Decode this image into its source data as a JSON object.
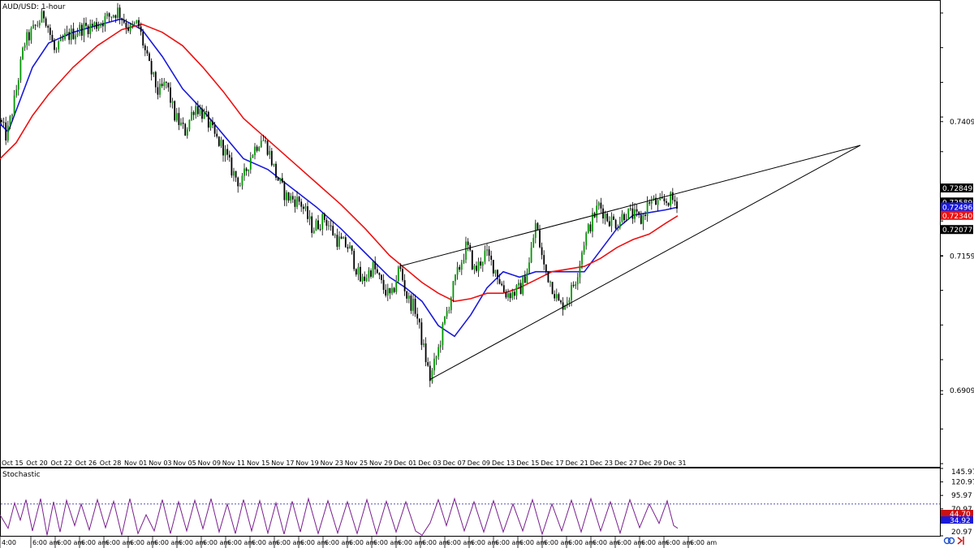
{
  "window": {
    "symbol_title": "AUD/USD: 1-hour",
    "indicator_title": "Stochastic"
  },
  "colors": {
    "background": "#ffffff",
    "bull_candle": "#009900",
    "bear_candle": "#000000",
    "ma_fast": "#1a1adc",
    "ma_slow": "#ee1111",
    "stoch_line": "#7a1f8f",
    "stoch_level_upper": "#3a3ab0",
    "stoch_level_lower": "#c00000",
    "trendline": "#000000"
  },
  "chart_data": [
    {
      "type": "candlestick",
      "title": "AUD/USD: 1-hour",
      "ylim": [
        0.6766,
        0.7635
      ],
      "y_ticks": [
        "0.74090",
        "0.71590",
        "0.69090"
      ],
      "x_ticks": [
        "Oct 15",
        "Oct 20",
        "Oct 22",
        "Oct 26",
        "Oct 28",
        "Nov 01",
        "Nov 03",
        "Nov 05",
        "Nov 09",
        "Nov 11",
        "Nov 15",
        "Nov 17",
        "Nov 19",
        "Nov 23",
        "Nov 25",
        "Nov 29",
        "Dec 01",
        "Dec 03",
        "Dec 07",
        "Dec 09",
        "Dec 13",
        "Dec 15",
        "Dec 17",
        "Dec 21",
        "Dec 23",
        "Dec 27",
        "Dec 29",
        "Dec 31"
      ],
      "x_time_labels": [
        "4:00",
        "6:00 am",
        "6:00 am",
        "6:00 am",
        "6:00 am",
        "6:00 am",
        "6:00 am",
        "6:00 am",
        "6:00 am",
        "6:00 am",
        "6:00 am",
        "6:00 am",
        "6:00 am",
        "6:00 am",
        "6:00 am",
        "6:00 am",
        "6:00 am",
        "6:00 am",
        "6:00 am",
        "6:00 am",
        "6:00 am",
        "6:00 am",
        "6:00 am",
        "6:00 am",
        "6:00 am",
        "6:00 am",
        "6:00 am",
        "6:00 am",
        "6:00 am"
      ],
      "price_path": [
        [
          0,
          0.7412
        ],
        [
          8,
          0.738
        ],
        [
          18,
          0.745
        ],
        [
          30,
          0.7555
        ],
        [
          55,
          0.761
        ],
        [
          68,
          0.7535
        ],
        [
          80,
          0.7565
        ],
        [
          100,
          0.7582
        ],
        [
          120,
          0.759
        ],
        [
          145,
          0.7615
        ],
        [
          160,
          0.758
        ],
        [
          170,
          0.7592
        ],
        [
          182,
          0.752
        ],
        [
          195,
          0.7462
        ],
        [
          205,
          0.748
        ],
        [
          215,
          0.742
        ],
        [
          228,
          0.739
        ],
        [
          240,
          0.744
        ],
        [
          252,
          0.742
        ],
        [
          265,
          0.738
        ],
        [
          275,
          0.736
        ],
        [
          285,
          0.732
        ],
        [
          297,
          0.729
        ],
        [
          310,
          0.735
        ],
        [
          322,
          0.738
        ],
        [
          330,
          0.736
        ],
        [
          340,
          0.731
        ],
        [
          352,
          0.727
        ],
        [
          370,
          0.726
        ],
        [
          385,
          0.721
        ],
        [
          400,
          0.723
        ],
        [
          415,
          0.719
        ],
        [
          430,
          0.7175
        ],
        [
          445,
          0.711
        ],
        [
          460,
          0.714
        ],
        [
          472,
          0.71
        ],
        [
          482,
          0.708
        ],
        [
          492,
          0.714
        ],
        [
          502,
          0.708
        ],
        [
          512,
          0.706
        ],
        [
          520,
          0.7
        ],
        [
          530,
          0.693
        ],
        [
          540,
          0.6985
        ],
        [
          548,
          0.704
        ],
        [
          560,
          0.711
        ],
        [
          575,
          0.718
        ],
        [
          585,
          0.713
        ],
        [
          598,
          0.7165
        ],
        [
          610,
          0.7135
        ],
        [
          622,
          0.709
        ],
        [
          632,
          0.709
        ],
        [
          642,
          0.71
        ],
        [
          652,
          0.7145
        ],
        [
          660,
          0.722
        ],
        [
          670,
          0.714
        ],
        [
          680,
          0.7105
        ],
        [
          690,
          0.7065
        ],
        [
          700,
          0.708
        ],
        [
          710,
          0.712
        ],
        [
          720,
          0.719
        ],
        [
          728,
          0.722
        ],
        [
          738,
          0.7255
        ],
        [
          748,
          0.723
        ],
        [
          760,
          0.722
        ],
        [
          770,
          0.724
        ],
        [
          780,
          0.7235
        ],
        [
          790,
          0.7225
        ],
        [
          800,
          0.7262
        ],
        [
          812,
          0.7255
        ],
        [
          825,
          0.7265
        ],
        [
          835,
          0.7259
        ]
      ],
      "series": [
        {
          "name": "",
          "last_value": "0.72496",
          "values": [
            [
              0,
              0.7405
            ],
            [
              10,
              0.739
            ],
            [
              20,
              0.743
            ],
            [
              40,
              0.751
            ],
            [
              60,
              0.7555
            ],
            [
              90,
              0.7575
            ],
            [
              120,
              0.7588
            ],
            [
              150,
              0.76
            ],
            [
              175,
              0.758
            ],
            [
              200,
              0.753
            ],
            [
              225,
              0.747
            ],
            [
              250,
              0.743
            ],
            [
              275,
              0.7385
            ],
            [
              300,
              0.734
            ],
            [
              330,
              0.732
            ],
            [
              360,
              0.7285
            ],
            [
              390,
              0.725
            ],
            [
              420,
              0.721
            ],
            [
              450,
              0.7165
            ],
            [
              480,
              0.712
            ],
            [
              500,
              0.71
            ],
            [
              520,
              0.7075
            ],
            [
              540,
              0.703
            ],
            [
              560,
              0.701
            ],
            [
              580,
              0.705
            ],
            [
              600,
              0.71
            ],
            [
              620,
              0.713
            ],
            [
              640,
              0.712
            ],
            [
              660,
              0.713
            ],
            [
              680,
              0.713
            ],
            [
              700,
              0.713
            ],
            [
              720,
              0.713
            ],
            [
              740,
              0.717
            ],
            [
              760,
              0.721
            ],
            [
              780,
              0.7235
            ],
            [
              800,
              0.724
            ],
            [
              820,
              0.7245
            ],
            [
              835,
              0.725
            ]
          ]
        },
        {
          "name": "",
          "last_value": "0.72340",
          "values": [
            [
              0,
              0.734
            ],
            [
              20,
              0.737
            ],
            [
              40,
              0.742
            ],
            [
              60,
              0.746
            ],
            [
              90,
              0.751
            ],
            [
              120,
              0.755
            ],
            [
              150,
              0.758
            ],
            [
              175,
              0.759
            ],
            [
              200,
              0.7575
            ],
            [
              225,
              0.755
            ],
            [
              250,
              0.751
            ],
            [
              275,
              0.7465
            ],
            [
              300,
              0.7415
            ],
            [
              330,
              0.7375
            ],
            [
              360,
              0.7335
            ],
            [
              390,
              0.7295
            ],
            [
              420,
              0.7255
            ],
            [
              450,
              0.721
            ],
            [
              480,
              0.716
            ],
            [
              500,
              0.7135
            ],
            [
              520,
              0.711
            ],
            [
              540,
              0.709
            ],
            [
              560,
              0.7075
            ],
            [
              580,
              0.708
            ],
            [
              600,
              0.709
            ],
            [
              620,
              0.709
            ],
            [
              640,
              0.71
            ],
            [
              660,
              0.7115
            ],
            [
              680,
              0.713
            ],
            [
              700,
              0.7135
            ],
            [
              720,
              0.714
            ],
            [
              740,
              0.7155
            ],
            [
              760,
              0.7175
            ],
            [
              780,
              0.719
            ],
            [
              800,
              0.72
            ],
            [
              820,
              0.722
            ],
            [
              835,
              0.7234
            ]
          ]
        }
      ],
      "trendlines": [
        {
          "from": [
            492,
            0.714
          ],
          "to": [
            1060,
            0.7365
          ]
        },
        {
          "from": [
            530,
            0.693
          ],
          "to": [
            1060,
            0.7365
          ]
        }
      ],
      "price_labels": [
        {
          "value": 0.72849,
          "text": "0.72849",
          "bg": "#000000",
          "fg": "#ffffff"
        },
        {
          "value": 0.72589,
          "text": "0.72589",
          "bg": "#000000",
          "fg": "#ffffff"
        },
        {
          "value": 0.72496,
          "text": "0.72496",
          "bg": "#1a1adc",
          "fg": "#ffffff"
        },
        {
          "value": 0.7234,
          "text": "0.72340",
          "bg": "#ee1111",
          "fg": "#ffffff"
        },
        {
          "value": 0.72077,
          "text": "0.72077",
          "bg": "#000000",
          "fg": "#ffffff"
        }
      ]
    },
    {
      "type": "line",
      "title": "Stochastic",
      "ylim": [
        20.97,
        145.97
      ],
      "y_ticks": [
        "145.97",
        "120.97",
        "95.97",
        "70.97",
        "20.97"
      ],
      "levels": [
        80,
        20
      ],
      "last_values": [
        "44.70",
        "34.92"
      ],
      "series": [
        {
          "name": "",
          "values": [
            [
              0,
              60
            ],
            [
              10,
              35
            ],
            [
              18,
              82
            ],
            [
              25,
              50
            ],
            [
              32,
              88
            ],
            [
              40,
              30
            ],
            [
              50,
              90
            ],
            [
              58,
              22
            ],
            [
              66,
              84
            ],
            [
              74,
              28
            ],
            [
              82,
              87
            ],
            [
              92,
              40
            ],
            [
              100,
              80
            ],
            [
              110,
              32
            ],
            [
              120,
              88
            ],
            [
              130,
              36
            ],
            [
              140,
              85
            ],
            [
              150,
              22
            ],
            [
              160,
              90
            ],
            [
              170,
              25
            ],
            [
              180,
              60
            ],
            [
              190,
              30
            ],
            [
              200,
              88
            ],
            [
              210,
              25
            ],
            [
              220,
              84
            ],
            [
              230,
              30
            ],
            [
              240,
              87
            ],
            [
              250,
              34
            ],
            [
              260,
              90
            ],
            [
              270,
              28
            ],
            [
              280,
              80
            ],
            [
              290,
              25
            ],
            [
              300,
              88
            ],
            [
              310,
              30
            ],
            [
              320,
              86
            ],
            [
              330,
              26
            ],
            [
              340,
              82
            ],
            [
              350,
              24
            ],
            [
              360,
              85
            ],
            [
              370,
              28
            ],
            [
              380,
              90
            ],
            [
              392,
              25
            ],
            [
              404,
              86
            ],
            [
              416,
              26
            ],
            [
              428,
              84
            ],
            [
              440,
              25
            ],
            [
              452,
              88
            ],
            [
              464,
              24
            ],
            [
              476,
              85
            ],
            [
              488,
              28
            ],
            [
              500,
              84
            ],
            [
              512,
              30
            ],
            [
              520,
              22
            ],
            [
              530,
              45
            ],
            [
              540,
              88
            ],
            [
              550,
              40
            ],
            [
              560,
              90
            ],
            [
              572,
              30
            ],
            [
              584,
              84
            ],
            [
              596,
              28
            ],
            [
              608,
              86
            ],
            [
              620,
              28
            ],
            [
              632,
              80
            ],
            [
              644,
              30
            ],
            [
              656,
              88
            ],
            [
              668,
              24
            ],
            [
              680,
              80
            ],
            [
              692,
              30
            ],
            [
              704,
              87
            ],
            [
              716,
              28
            ],
            [
              728,
              90
            ],
            [
              740,
              30
            ],
            [
              752,
              84
            ],
            [
              764,
              26
            ],
            [
              776,
              88
            ],
            [
              788,
              36
            ],
            [
              800,
              80
            ],
            [
              812,
              44
            ],
            [
              822,
              86
            ],
            [
              830,
              40
            ],
            [
              835,
              35
            ]
          ]
        }
      ]
    }
  ]
}
